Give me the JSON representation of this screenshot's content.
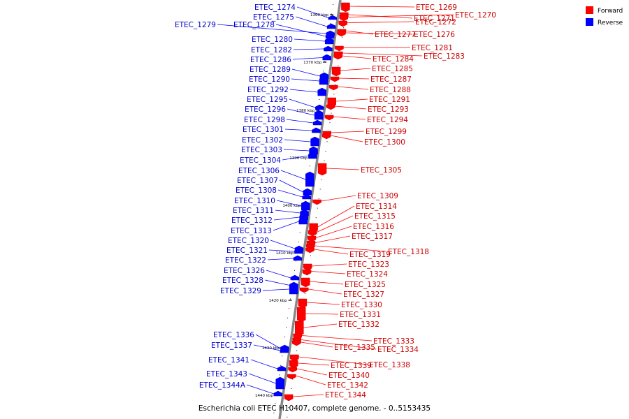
{
  "caption": "Escherichia coli ETEC H10407, complete genome. - 0..5153435",
  "legend": [
    {
      "label": "Forward",
      "color": "#ff0000"
    },
    {
      "label": "Reverse",
      "color": "#0000ff"
    }
  ],
  "colors": {
    "forward": "#ff0000",
    "reverse": "#0000ff",
    "forward_label": "#cc0000",
    "reverse_label": "#0000cc"
  },
  "ticks": [
    "1360 kbp",
    "1370 kbp",
    "1380 kbp",
    "1390 kbp",
    "1400 kbp",
    "1410 kbp",
    "1420 kbp",
    "1430 kbp",
    "1440 kbp"
  ],
  "forward_genes": [
    "ETEC_1269",
    "ETEC_1271",
    "ETEC_1270",
    "ETEC_1272",
    "ETEC_1277",
    "ETEC_1276",
    "ETEC_1281",
    "ETEC_1283",
    "ETEC_1284",
    "ETEC_1285",
    "ETEC_1287",
    "ETEC_1288",
    "ETEC_1291",
    "ETEC_1293",
    "ETEC_1294",
    "ETEC_1299",
    "ETEC_1300",
    "ETEC_1305",
    "ETEC_1309",
    "ETEC_1314",
    "ETEC_1315",
    "ETEC_1316",
    "ETEC_1317",
    "ETEC_1318",
    "ETEC_1319",
    "ETEC_1323",
    "ETEC_1324",
    "ETEC_1325",
    "ETEC_1327",
    "ETEC_1330",
    "ETEC_1331",
    "ETEC_1332",
    "ETEC_1333",
    "ETEC_1334",
    "ETEC_1335",
    "ETEC_1338",
    "ETEC_1339",
    "ETEC_1340",
    "ETEC_1342",
    "ETEC_1344"
  ],
  "reverse_genes": [
    "ETEC_1274",
    "ETEC_1275",
    "ETEC_1279",
    "ETEC_1278",
    "ETEC_1280",
    "ETEC_1282",
    "ETEC_1286",
    "ETEC_1289",
    "ETEC_1290",
    "ETEC_1292",
    "ETEC_1295",
    "ETEC_1296",
    "ETEC_1298",
    "ETEC_1301",
    "ETEC_1302",
    "ETEC_1303",
    "ETEC_1304",
    "ETEC_1306",
    "ETEC_1307",
    "ETEC_1308",
    "ETEC_1310",
    "ETEC_1311",
    "ETEC_1312",
    "ETEC_1313",
    "ETEC_1320",
    "ETEC_1321",
    "ETEC_1322",
    "ETEC_1326",
    "ETEC_1328",
    "ETEC_1329",
    "ETEC_1336",
    "ETEC_1337",
    "ETEC_1341",
    "ETEC_1343",
    "ETEC_1344A"
  ]
}
